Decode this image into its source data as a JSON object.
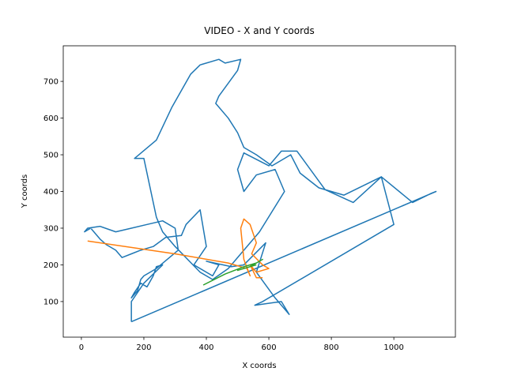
{
  "chart_data": {
    "type": "line",
    "title": "VIDEO - X and Y coords",
    "x_label": "X coords",
    "y_label": "Y coords",
    "xlim": [
      -58,
      1197
    ],
    "ylim": [
      3,
      797
    ],
    "xticks": [
      0,
      200,
      400,
      600,
      800,
      1000
    ],
    "yticks": [
      100,
      200,
      300,
      400,
      500,
      600,
      700
    ],
    "series": [
      {
        "color": "#1f77b4",
        "x": [
          160,
          1135,
          1120,
          1060,
          960,
          870,
          780,
          690,
          640,
          600,
          520,
          500,
          520,
          560,
          620,
          650,
          570,
          470,
          420,
          380,
          300,
          260,
          240,
          200,
          170,
          240,
          290,
          350,
          380,
          440,
          460,
          510,
          500,
          440,
          430,
          470,
          500,
          520,
          560,
          610,
          670,
          700,
          760,
          840,
          960,
          1000,
          580,
          555,
          640,
          665,
          620,
          560,
          590,
          520,
          480,
          400,
          440,
          420,
          360,
          400,
          380,
          335,
          320,
          270,
          230,
          190,
          160,
          130,
          110,
          80,
          60,
          30,
          10,
          20,
          60,
          110,
          160,
          210,
          260,
          300,
          310,
          240,
          200,
          190,
          180,
          160,
          170,
          190,
          210,
          230,
          240,
          260,
          200,
          160,
          160
        ],
        "values": [
          45,
          400,
          395,
          370,
          440,
          370,
          405,
          510,
          510,
          470,
          505,
          460,
          400,
          445,
          460,
          400,
          290,
          190,
          160,
          180,
          250,
          290,
          330,
          490,
          490,
          540,
          630,
          720,
          745,
          760,
          750,
          760,
          730,
          660,
          640,
          600,
          560,
          520,
          500,
          470,
          500,
          450,
          410,
          390,
          440,
          310,
          100,
          90,
          100,
          65,
          110,
          180,
          260,
          200,
          195,
          210,
          200,
          170,
          200,
          250,
          350,
          310,
          280,
          275,
          250,
          240,
          230,
          220,
          240,
          255,
          270,
          300,
          290,
          300,
          305,
          290,
          300,
          310,
          320,
          300,
          240,
          190,
          170,
          160,
          130,
          110,
          125,
          150,
          140,
          170,
          195,
          200,
          150,
          100,
          45
        ]
      },
      {
        "color": "#ff7f0e",
        "x": [
          20,
          300,
          470,
          530,
          540,
          520,
          510,
          520,
          540,
          560,
          545,
          580,
          600,
          560,
          540,
          560,
          580
        ],
        "values": [
          265,
          230,
          205,
          190,
          170,
          215,
          300,
          325,
          310,
          260,
          230,
          200,
          190,
          180,
          200,
          165,
          165
        ]
      },
      {
        "color": "#2ca02c",
        "x": [
          390,
          460,
          520,
          560,
          580,
          540,
          500,
          560
        ],
        "values": [
          145,
          175,
          195,
          205,
          215,
          195,
          185,
          200
        ]
      }
    ]
  }
}
